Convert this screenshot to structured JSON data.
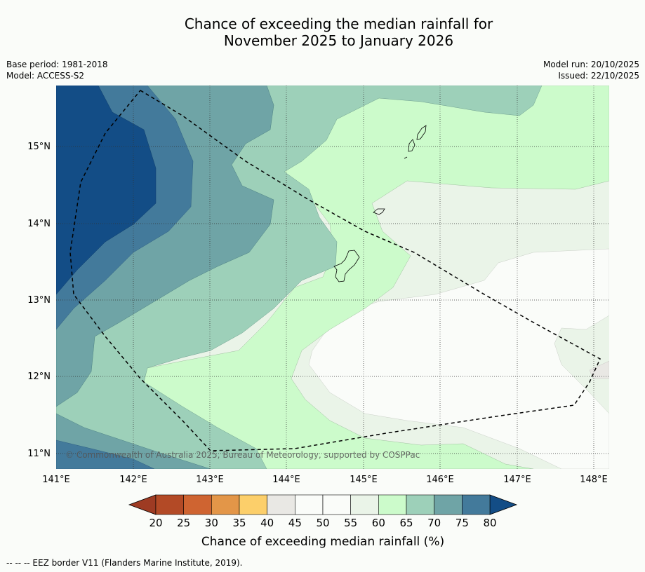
{
  "title": {
    "line1": "Chance of exceeding the median rainfall for",
    "line2": "November 2025 to January 2026"
  },
  "meta_left": {
    "base_period": "Base period: 1981-2018",
    "model": "Model: ACCESS-S2"
  },
  "meta_right": {
    "model_run": "Model run: 20/10/2025",
    "issued": "Issued: 22/10/2025"
  },
  "map": {
    "lon_labels": [
      "141°E",
      "142°E",
      "143°E",
      "144°E",
      "145°E",
      "146°E",
      "147°E",
      "148°E"
    ],
    "lat_labels": [
      "15°N",
      "14°N",
      "13°N",
      "12°N",
      "11°N"
    ],
    "copyright": "© Commonwealth of Australia 2025, Bureau of Meteorology, supported by COSPPac"
  },
  "colorbar": {
    "ticks": [
      "20",
      "25",
      "30",
      "35",
      "40",
      "45",
      "50",
      "55",
      "60",
      "65",
      "70",
      "75",
      "80"
    ],
    "colors": [
      "#b34a26",
      "#cf6431",
      "#e39648",
      "#fccf6a",
      "#e9e8e4",
      "#fafcf9",
      "#fafcf9",
      "#eaf4e8",
      "#ccfbcb",
      "#9dd0b9",
      "#6fa4a6",
      "#437a9b"
    ],
    "under_color": "#9e3b23",
    "over_color": "#134d86",
    "label": "Chance of exceeding median rainfall (%)"
  },
  "footnote": "--  --  -- EEZ border V11 (Flanders Marine Institute, 2019)."
}
